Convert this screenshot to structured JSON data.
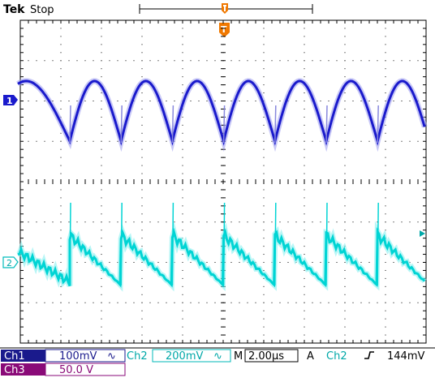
{
  "header": {
    "brand": "Tek",
    "status": "Stop"
  },
  "trigger": {
    "position_marker": "T"
  },
  "channels": {
    "ch1": {
      "label": "Ch1",
      "marker": "1",
      "scale": "100mV",
      "coupling_icon": "∿",
      "color": "#1a1acc"
    },
    "ch2": {
      "label": "Ch2",
      "marker": "2",
      "scale": "200mV",
      "coupling_icon": "∿",
      "color": "#00d4d4"
    },
    "ch3": {
      "label": "Ch3",
      "scale": "50.0 V",
      "color": "#8a0a78"
    }
  },
  "timebase": {
    "mode": "M",
    "value": "2.00µs"
  },
  "trigger_readout": {
    "mode": "A",
    "source": "Ch2",
    "slope_icon": "rising-edge-icon",
    "level": "144mV"
  },
  "colors": {
    "graticule": "#000000",
    "trigger": "#f07800",
    "panel_bg": "#ffffff"
  }
}
